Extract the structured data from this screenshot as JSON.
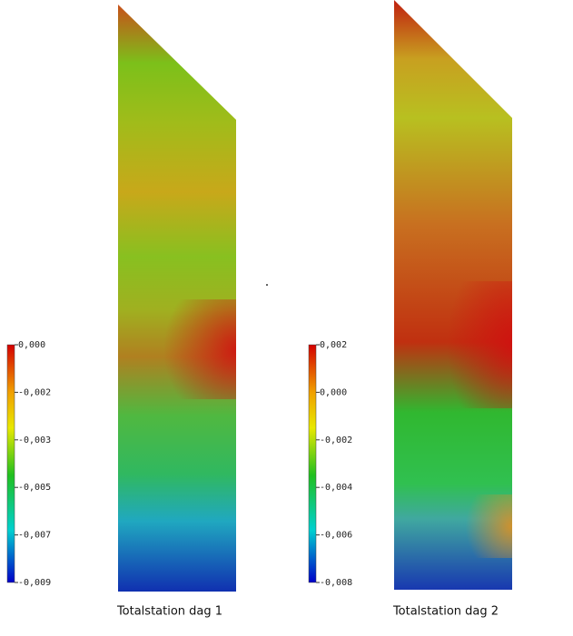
{
  "panels": [
    {
      "caption": "Totalstation dag 1",
      "colorbar": {
        "ticks": [
          "0,000",
          "-0,002",
          "-0,003",
          "-0,005",
          "-0,007",
          "-0,009"
        ]
      }
    },
    {
      "caption": "Totalstation dag 2",
      "colorbar": {
        "ticks": [
          "0,002",
          "0,000",
          "-0,002",
          "-0,004",
          "-0,006",
          "-0,008"
        ]
      }
    }
  ]
}
